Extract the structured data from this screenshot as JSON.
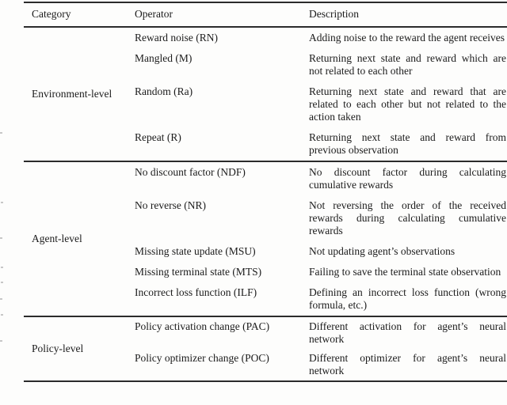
{
  "table": {
    "headers": [
      "Category",
      "Operator",
      "Description"
    ],
    "groups": [
      {
        "category": "Environment-level",
        "rows": [
          {
            "operator": "Reward noise (RN)",
            "description": "Adding noise to the reward the agent receives"
          },
          {
            "operator": "Mangled (M)",
            "description": "Returning next state and reward which are not related to each other"
          },
          {
            "operator": "Random (Ra)",
            "description": "Returning next state and reward that are related to each other but not related to the action taken"
          },
          {
            "operator": "Repeat (R)",
            "description": "Returning next state and reward from previous observation"
          }
        ]
      },
      {
        "category": "Agent-level",
        "rows": [
          {
            "operator": "No discount factor (NDF)",
            "description": "No discount factor during calculating cumulative rewards"
          },
          {
            "operator": "No reverse (NR)",
            "description": "Not reversing the order of the received rewards during calculating cumulative rewards"
          },
          {
            "operator": "Missing state update (MSU)",
            "description": "Not updating agent’s observations"
          },
          {
            "operator": "Missing terminal state (MTS)",
            "description": "Failing to save the terminal state obser­vation"
          },
          {
            "operator": "Incorrect loss function (ILF)",
            "description": "Defining an incorrect loss function (wrong formula, etc.)"
          }
        ]
      },
      {
        "category": "Policy-level",
        "rows": [
          {
            "operator": "Policy activation change (PAC)",
            "description": "Different activation for agent’s neural network"
          },
          {
            "operator": "Policy optimizer change (POC)",
            "description": "Different optimizer for agent’s neural network"
          }
        ]
      }
    ]
  }
}
